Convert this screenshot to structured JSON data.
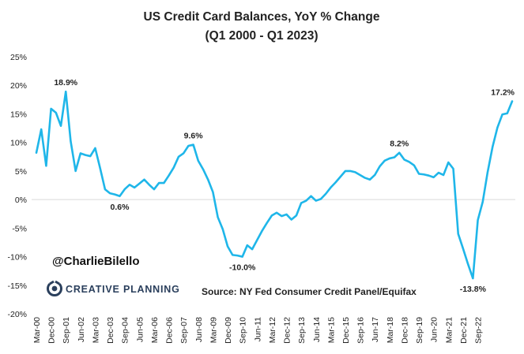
{
  "chart_data": {
    "type": "line",
    "title": "US Credit Card Balances, YoY % Change",
    "subtitle": "(Q1 2000 - Q1 2023)",
    "xlabel": "",
    "ylabel": "",
    "ylim": [
      -20,
      25
    ],
    "y_ticks": [
      -20,
      -15,
      -10,
      -5,
      0,
      5,
      10,
      15,
      20,
      25
    ],
    "y_tick_labels": [
      "-20%",
      "-15%",
      "-10%",
      "-5%",
      "0%",
      "5%",
      "10%",
      "15%",
      "20%",
      "25%"
    ],
    "x_tick_labels": [
      "Mar-00",
      "Dec-00",
      "Sep-01",
      "Jun-02",
      "Mar-03",
      "Dec-03",
      "Sep-04",
      "Jun-05",
      "Mar-06",
      "Dec-06",
      "Sep-07",
      "Jun-08",
      "Mar-09",
      "Dec-09",
      "Sep-10",
      "Jun-11",
      "Mar-12",
      "Dec-12",
      "Sep-13",
      "Jun-14",
      "Mar-15",
      "Dec-15",
      "Sep-16",
      "Jun-17",
      "Mar-18",
      "Dec-18",
      "Sep-19",
      "Jun-20",
      "Mar-21",
      "Dec-21",
      "Sep-22"
    ],
    "grid": false,
    "line_color": "#1fb6e9",
    "series": [
      {
        "name": "US Credit Card Balances YoY % Change",
        "start": "Q1 2000",
        "frequency": "quarterly",
        "values": [
          8.2,
          12.3,
          5.9,
          15.9,
          15.2,
          12.9,
          18.9,
          10.2,
          5.0,
          8.1,
          7.8,
          7.6,
          9.0,
          5.5,
          1.8,
          1.1,
          0.9,
          0.6,
          1.8,
          2.6,
          2.1,
          2.8,
          3.5,
          2.6,
          1.8,
          2.9,
          2.9,
          4.2,
          5.6,
          7.5,
          8.1,
          9.4,
          9.6,
          6.8,
          5.3,
          3.5,
          1.3,
          -3.1,
          -5.2,
          -8.2,
          -9.7,
          -9.8,
          -10.0,
          -8.0,
          -8.7,
          -7.1,
          -5.5,
          -4.1,
          -2.8,
          -2.3,
          -2.9,
          -2.6,
          -3.5,
          -2.8,
          -0.6,
          -0.2,
          0.6,
          -0.2,
          0.1,
          1.0,
          2.1,
          3.0,
          4.0,
          5.0,
          5.0,
          4.8,
          4.3,
          3.8,
          3.5,
          4.3,
          5.8,
          6.8,
          7.2,
          7.4,
          8.2,
          7.0,
          6.6,
          6.0,
          4.5,
          4.4,
          4.2,
          3.9,
          4.7,
          4.3,
          6.5,
          5.4,
          -6.0,
          -8.6,
          -11.3,
          -13.8,
          -3.6,
          -0.4,
          4.8,
          9.2,
          12.6,
          14.9,
          15.1,
          17.2
        ]
      }
    ],
    "annotations": [
      {
        "text": "18.9%",
        "index": 6
      },
      {
        "text": "0.6%",
        "index": 17
      },
      {
        "text": "9.6%",
        "index": 32
      },
      {
        "text": "-10.0%",
        "index": 42
      },
      {
        "text": "8.2%",
        "index": 74
      },
      {
        "text": "-13.8%",
        "index": 89
      },
      {
        "text": "17.2%",
        "index": 97
      }
    ]
  },
  "watermark": {
    "handle": "@CharlieBilello",
    "brand": "CREATIVE PLANNING"
  },
  "source": "Source: NY Fed Consumer Credit Panel/Equifax"
}
